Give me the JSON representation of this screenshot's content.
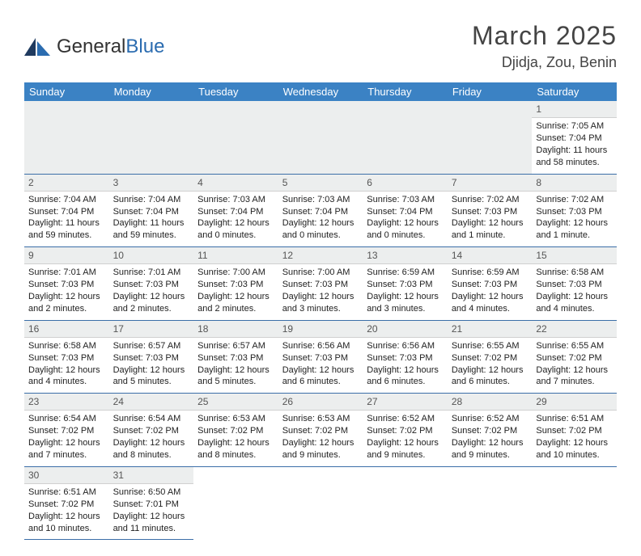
{
  "brand": {
    "name_a": "General",
    "name_b": "Blue"
  },
  "header": {
    "month": "March 2025",
    "location": "Djidja, Zou, Benin"
  },
  "weekdays": [
    "Sunday",
    "Monday",
    "Tuesday",
    "Wednesday",
    "Thursday",
    "Friday",
    "Saturday"
  ],
  "colors": {
    "accent": "#3b82c4",
    "daynum_bg": "#eceeee",
    "week_border": "#3b6ea8"
  },
  "fonts": {
    "month_pt": 32,
    "location_pt": 18,
    "weekday_pt": 13,
    "cell_pt": 11
  },
  "grid": {
    "cols": 7,
    "rows": 6,
    "first_index": 6,
    "days_in_month": 31
  },
  "days": {
    "1": {
      "sunrise": "7:05 AM",
      "sunset": "7:04 PM",
      "dl_h": 11,
      "dl_m": 58
    },
    "2": {
      "sunrise": "7:04 AM",
      "sunset": "7:04 PM",
      "dl_h": 11,
      "dl_m": 59
    },
    "3": {
      "sunrise": "7:04 AM",
      "sunset": "7:04 PM",
      "dl_h": 11,
      "dl_m": 59
    },
    "4": {
      "sunrise": "7:03 AM",
      "sunset": "7:04 PM",
      "dl_h": 12,
      "dl_m": 0
    },
    "5": {
      "sunrise": "7:03 AM",
      "sunset": "7:04 PM",
      "dl_h": 12,
      "dl_m": 0
    },
    "6": {
      "sunrise": "7:03 AM",
      "sunset": "7:04 PM",
      "dl_h": 12,
      "dl_m": 0
    },
    "7": {
      "sunrise": "7:02 AM",
      "sunset": "7:03 PM",
      "dl_h": 12,
      "dl_m": 1
    },
    "8": {
      "sunrise": "7:02 AM",
      "sunset": "7:03 PM",
      "dl_h": 12,
      "dl_m": 1
    },
    "9": {
      "sunrise": "7:01 AM",
      "sunset": "7:03 PM",
      "dl_h": 12,
      "dl_m": 2
    },
    "10": {
      "sunrise": "7:01 AM",
      "sunset": "7:03 PM",
      "dl_h": 12,
      "dl_m": 2
    },
    "11": {
      "sunrise": "7:00 AM",
      "sunset": "7:03 PM",
      "dl_h": 12,
      "dl_m": 2
    },
    "12": {
      "sunrise": "7:00 AM",
      "sunset": "7:03 PM",
      "dl_h": 12,
      "dl_m": 3
    },
    "13": {
      "sunrise": "6:59 AM",
      "sunset": "7:03 PM",
      "dl_h": 12,
      "dl_m": 3
    },
    "14": {
      "sunrise": "6:59 AM",
      "sunset": "7:03 PM",
      "dl_h": 12,
      "dl_m": 4
    },
    "15": {
      "sunrise": "6:58 AM",
      "sunset": "7:03 PM",
      "dl_h": 12,
      "dl_m": 4
    },
    "16": {
      "sunrise": "6:58 AM",
      "sunset": "7:03 PM",
      "dl_h": 12,
      "dl_m": 4
    },
    "17": {
      "sunrise": "6:57 AM",
      "sunset": "7:03 PM",
      "dl_h": 12,
      "dl_m": 5
    },
    "18": {
      "sunrise": "6:57 AM",
      "sunset": "7:03 PM",
      "dl_h": 12,
      "dl_m": 5
    },
    "19": {
      "sunrise": "6:56 AM",
      "sunset": "7:03 PM",
      "dl_h": 12,
      "dl_m": 6
    },
    "20": {
      "sunrise": "6:56 AM",
      "sunset": "7:03 PM",
      "dl_h": 12,
      "dl_m": 6
    },
    "21": {
      "sunrise": "6:55 AM",
      "sunset": "7:02 PM",
      "dl_h": 12,
      "dl_m": 6
    },
    "22": {
      "sunrise": "6:55 AM",
      "sunset": "7:02 PM",
      "dl_h": 12,
      "dl_m": 7
    },
    "23": {
      "sunrise": "6:54 AM",
      "sunset": "7:02 PM",
      "dl_h": 12,
      "dl_m": 7
    },
    "24": {
      "sunrise": "6:54 AM",
      "sunset": "7:02 PM",
      "dl_h": 12,
      "dl_m": 8
    },
    "25": {
      "sunrise": "6:53 AM",
      "sunset": "7:02 PM",
      "dl_h": 12,
      "dl_m": 8
    },
    "26": {
      "sunrise": "6:53 AM",
      "sunset": "7:02 PM",
      "dl_h": 12,
      "dl_m": 9
    },
    "27": {
      "sunrise": "6:52 AM",
      "sunset": "7:02 PM",
      "dl_h": 12,
      "dl_m": 9
    },
    "28": {
      "sunrise": "6:52 AM",
      "sunset": "7:02 PM",
      "dl_h": 12,
      "dl_m": 9
    },
    "29": {
      "sunrise": "6:51 AM",
      "sunset": "7:02 PM",
      "dl_h": 12,
      "dl_m": 10
    },
    "30": {
      "sunrise": "6:51 AM",
      "sunset": "7:02 PM",
      "dl_h": 12,
      "dl_m": 10
    },
    "31": {
      "sunrise": "6:50 AM",
      "sunset": "7:01 PM",
      "dl_h": 12,
      "dl_m": 11
    }
  }
}
